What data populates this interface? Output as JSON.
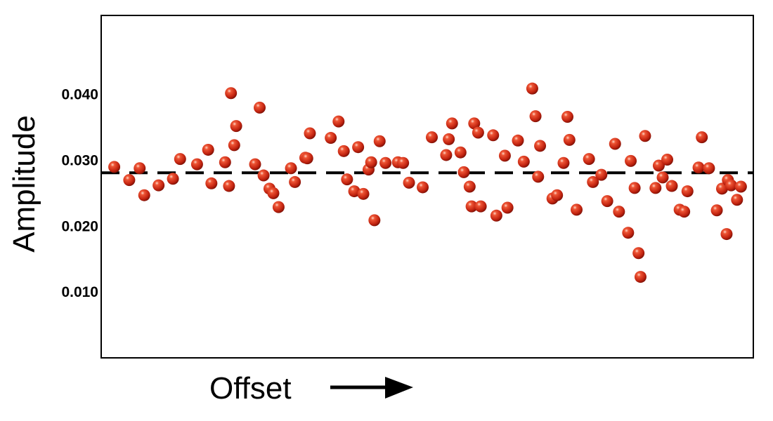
{
  "chart_data": {
    "type": "scatter",
    "title": "",
    "xlabel": "Offset",
    "ylabel": "Amplitude",
    "x_axis_tick_labels": false,
    "x_axis_arrow": true,
    "xlim": [
      0,
      100
    ],
    "ylim": [
      0,
      0.052
    ],
    "yticks": [
      0.01,
      0.02,
      0.03,
      0.04
    ],
    "ytick_labels": [
      "0.010",
      "0.020",
      "0.030",
      "0.040"
    ],
    "grid": false,
    "reference_line": {
      "y": 0.0281,
      "style": "dashed",
      "color": "#000000"
    },
    "marker_color": "#cc2a14",
    "series": [
      {
        "x": [
          2.0,
          4.3,
          5.9,
          6.6,
          8.8,
          11.0,
          12.1,
          14.7,
          16.4,
          16.9,
          19.0,
          19.6,
          19.9,
          20.4,
          20.7,
          23.6,
          24.3,
          24.9,
          25.8,
          26.4,
          27.2,
          29.1,
          29.7,
          31.3,
          31.6,
          32.0,
          35.2,
          36.4,
          37.2,
          37.7,
          38.8,
          39.4,
          40.2,
          41.0,
          41.4,
          41.9,
          42.7,
          43.6,
          45.5,
          46.3,
          47.2,
          49.3,
          50.7,
          52.9,
          53.3,
          53.8,
          55.1,
          55.6,
          56.5,
          56.8,
          57.2,
          57.8,
          58.2,
          60.1,
          60.6,
          61.9,
          62.3,
          63.9,
          64.8,
          66.1,
          66.6,
          67.0,
          67.3,
          69.2,
          69.9,
          70.9,
          71.5,
          71.8,
          72.9,
          74.8,
          75.4,
          76.7,
          77.6,
          78.8,
          79.4,
          80.8,
          81.2,
          81.8,
          82.4,
          82.7,
          83.4,
          85.0,
          85.5,
          86.1,
          86.8,
          87.5,
          88.7,
          89.4,
          89.9,
          91.6,
          92.1,
          93.2,
          94.4,
          95.2,
          95.9,
          96.1,
          96.6,
          97.5,
          98.1
        ],
        "y": [
          0.029,
          0.027,
          0.0288,
          0.0247,
          0.0262,
          0.0272,
          0.0302,
          0.0294,
          0.0316,
          0.0265,
          0.0297,
          0.0261,
          0.0402,
          0.0323,
          0.0352,
          0.0294,
          0.038,
          0.0277,
          0.0257,
          0.025,
          0.0229,
          0.0288,
          0.0267,
          0.0304,
          0.0303,
          0.0341,
          0.0334,
          0.0359,
          0.0314,
          0.0271,
          0.0253,
          0.032,
          0.0249,
          0.0286,
          0.0297,
          0.0209,
          0.0329,
          0.0296,
          0.0297,
          0.0296,
          0.0266,
          0.0259,
          0.0335,
          0.0308,
          0.0332,
          0.0356,
          0.0312,
          0.0282,
          0.026,
          0.023,
          0.0356,
          0.0342,
          0.023,
          0.0338,
          0.0216,
          0.0307,
          0.0228,
          0.033,
          0.0298,
          0.0409,
          0.0367,
          0.0275,
          0.0322,
          0.0242,
          0.0247,
          0.0296,
          0.0366,
          0.0331,
          0.0225,
          0.0302,
          0.0267,
          0.0278,
          0.0238,
          0.0325,
          0.0222,
          0.019,
          0.0299,
          0.0258,
          0.0159,
          0.0123,
          0.0337,
          0.0258,
          0.0292,
          0.0274,
          0.0301,
          0.0261,
          0.0225,
          0.0222,
          0.0253,
          0.0289,
          0.0335,
          0.0288,
          0.0224,
          0.0257,
          0.0188,
          0.027,
          0.0262,
          0.024,
          0.026
        ]
      }
    ]
  }
}
